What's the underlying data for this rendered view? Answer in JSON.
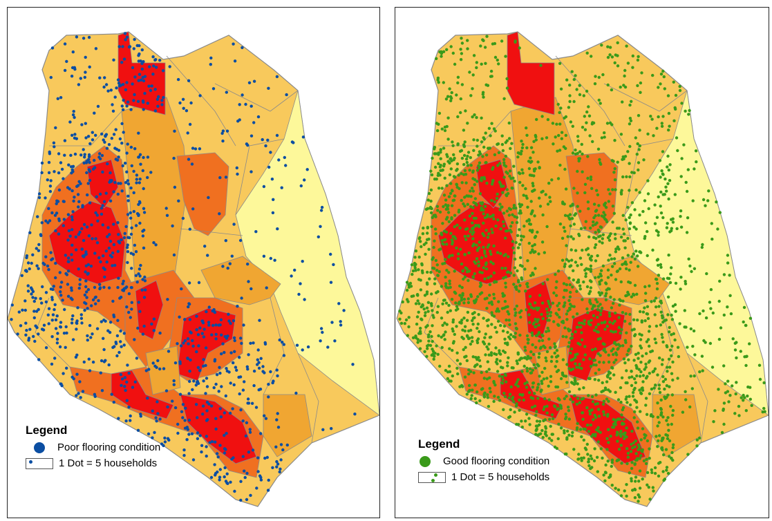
{
  "maps": [
    {
      "legend": {
        "title": "Legend",
        "symbol_label": "Poor flooring condition",
        "scale_label": "1 Dot = 5  households"
      },
      "dot_color": "#0b4ea2",
      "dot_density": "low-west"
    },
    {
      "legend": {
        "title": "Legend",
        "symbol_label": "Good flooring condition",
        "scale_label": "1 Dot = 5 households"
      },
      "dot_color": "#3a9a1a",
      "dot_density": "high"
    }
  ],
  "colors": {
    "lightest": "#fdf89a",
    "light": "#f8c95c",
    "medium": "#f0a632",
    "dark": "#f07020",
    "darkest": "#f01010",
    "boundary": "#8a8a8a"
  }
}
